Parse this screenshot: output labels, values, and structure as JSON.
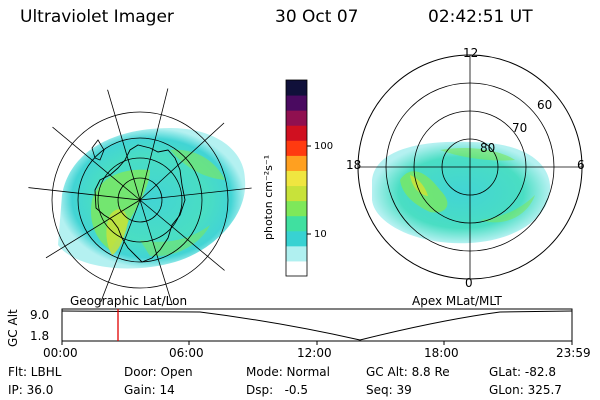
{
  "header": {
    "title": "Ultraviolet Imager",
    "date": "30 Oct 07",
    "time": "02:42:51 UT"
  },
  "left_panel": {
    "label": "Geographic Lat/Lon"
  },
  "right_panel": {
    "label": "Apex MLat/MLT",
    "mlt_labels": {
      "top": "12",
      "left": "18",
      "right": "6",
      "bottom": "0"
    },
    "lat_labels": [
      "60",
      "70",
      "80"
    ]
  },
  "colorbar": {
    "unit_label": "photon cm⁻²s⁻¹",
    "ticks": [
      "100",
      "10"
    ],
    "colors": [
      "#ffffff",
      "#b0f0f0",
      "#38d2d2",
      "#40e0a0",
      "#7ee85a",
      "#c8e23a",
      "#f0e640",
      "#ffa020",
      "#ff3a10",
      "#d01020",
      "#901050",
      "#4a0a60",
      "#10103a"
    ]
  },
  "timeline": {
    "y_label": "GC Alt",
    "y_ticks": [
      "9.0",
      "1.8"
    ],
    "x_ticks": [
      "00:00",
      "06:00",
      "12:00",
      "18:00",
      "23:59"
    ],
    "marker_time": "02:42"
  },
  "info": {
    "row1": [
      "Flt: LBHL",
      "Door: Open",
      "Mode: Normal",
      "GC Alt: 8.8 Re",
      "GLat: -82.8"
    ],
    "row2": [
      "IP: 36.0",
      "Gain: 14",
      "Dsp:   -0.5",
      "Seq: 39",
      "GLon: 325.7"
    ]
  }
}
